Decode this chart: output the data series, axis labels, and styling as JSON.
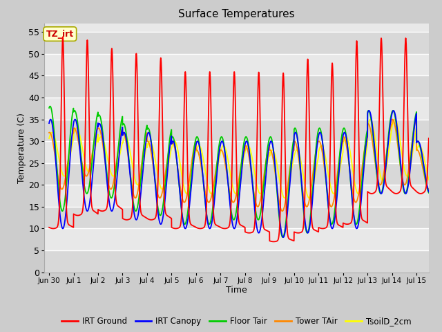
{
  "title": "Surface Temperatures",
  "xlabel": "Time",
  "ylabel": "Temperature (C)",
  "ylim": [
    0,
    57
  ],
  "yticks": [
    0,
    5,
    10,
    15,
    20,
    25,
    30,
    35,
    40,
    45,
    50,
    55
  ],
  "fig_bg": "#cccccc",
  "plot_bg": "#e8e8e8",
  "annotation_text": "TZ_irt",
  "annotation_bg": "#ffffcc",
  "annotation_border": "#aaaa00",
  "colors": {
    "IRT Ground": "#ff0000",
    "IRT Canopy": "#0000ff",
    "Floor Tair": "#00cc00",
    "Tower TAir": "#ff8800",
    "TsoilD_2cm": "#ffff00"
  },
  "x_tick_labels": [
    "Jun 30",
    "Jul 1",
    "Jul 2",
    "Jul 3",
    "Jul 4",
    "Jul 5",
    "Jul 6",
    "Jul 7",
    "Jul 8",
    "Jul 9",
    "Jul 10",
    "Jul 11",
    "Jul 12",
    "Jul 13",
    "Jul 14",
    "Jul 15"
  ],
  "x_tick_positions": [
    0,
    1,
    2,
    3,
    4,
    5,
    6,
    7,
    8,
    9,
    10,
    11,
    12,
    13,
    14,
    15
  ]
}
